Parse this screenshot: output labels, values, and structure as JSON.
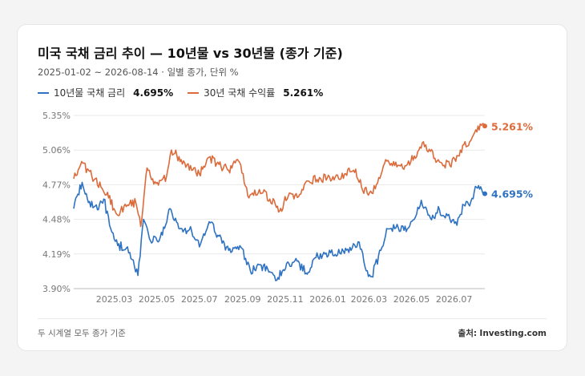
{
  "title": "미국 국채 금리 추이 — 10년물 vs 30년물 (종가 기준)",
  "subtitle": "2025-01-02 ~ 2026-08-14 · 일별 종가, 단위 %",
  "legend": [
    {
      "label": "10년물 국채 금리",
      "value": "4.695%"
    },
    {
      "label": "30년 국채 수익률",
      "value": "5.261%"
    }
  ],
  "end_labels": {
    "ten": "4.695%",
    "thirty": "5.261%"
  },
  "footer": {
    "note": "두 시계열 모두 종가 기준",
    "source_label": "출처:",
    "source": "Investing.com"
  },
  "colors": {
    "ten": "#2e72c1",
    "thirty": "#dc6b3c",
    "grid": "#e8e8ea",
    "tick": "#777777"
  },
  "chart_data": {
    "type": "line",
    "title": "미국 국채 금리 추이 — 10년물 vs 30년물 (종가 기준)",
    "x_range": [
      "2025-01-02",
      "2026-08-14"
    ],
    "ylim": [
      3.9,
      5.35
    ],
    "y_ticks": [
      "5.35%",
      "5.06%",
      "4.77%",
      "4.48%",
      "4.19%",
      "3.90%"
    ],
    "y_tick_values": [
      5.35,
      5.06,
      4.77,
      4.48,
      4.19,
      3.9
    ],
    "x_ticks": [
      "2025.03",
      "2025.05",
      "2025.07",
      "2025.09",
      "2025.11",
      "2026.01",
      "2026.03",
      "2026.05",
      "2026.07"
    ],
    "x_tick_dates": [
      "2025-03-01",
      "2025-05-01",
      "2025-07-01",
      "2025-09-01",
      "2025-11-01",
      "2026-01-01",
      "2026-03-01",
      "2026-05-01",
      "2026-07-01"
    ],
    "grid": true,
    "legend_position": "top-left",
    "series": [
      {
        "name": "10년물 국채 금리",
        "points": [
          [
            "2025-01-02",
            4.57
          ],
          [
            "2025-01-14",
            4.79
          ],
          [
            "2025-01-23",
            4.62
          ],
          [
            "2025-02-05",
            4.56
          ],
          [
            "2025-02-14",
            4.65
          ],
          [
            "2025-02-24",
            4.4
          ],
          [
            "2025-03-06",
            4.26
          ],
          [
            "2025-03-20",
            4.25
          ],
          [
            "2025-04-04",
            4.01
          ],
          [
            "2025-04-12",
            4.48
          ],
          [
            "2025-04-22",
            4.3
          ],
          [
            "2025-05-06",
            4.33
          ],
          [
            "2025-05-20",
            4.57
          ],
          [
            "2025-06-03",
            4.4
          ],
          [
            "2025-06-20",
            4.38
          ],
          [
            "2025-07-01",
            4.25
          ],
          [
            "2025-07-15",
            4.46
          ],
          [
            "2025-07-29",
            4.34
          ],
          [
            "2025-08-12",
            4.22
          ],
          [
            "2025-08-28",
            4.26
          ],
          [
            "2025-09-12",
            4.05
          ],
          [
            "2025-09-26",
            4.1
          ],
          [
            "2025-10-10",
            4.04
          ],
          [
            "2025-10-20",
            3.97
          ],
          [
            "2025-11-03",
            4.11
          ],
          [
            "2025-11-18",
            4.13
          ],
          [
            "2025-12-01",
            4.03
          ],
          [
            "2025-12-15",
            4.16
          ],
          [
            "2026-01-05",
            4.2
          ],
          [
            "2026-01-20",
            4.19
          ],
          [
            "2026-02-05",
            4.24
          ],
          [
            "2026-02-15",
            4.29
          ],
          [
            "2026-02-25",
            4.05
          ],
          [
            "2026-03-05",
            4.0
          ],
          [
            "2026-03-18",
            4.22
          ],
          [
            "2026-03-28",
            4.4
          ],
          [
            "2026-04-12",
            4.41
          ],
          [
            "2026-04-25",
            4.4
          ],
          [
            "2026-05-05",
            4.48
          ],
          [
            "2026-05-15",
            4.64
          ],
          [
            "2026-05-28",
            4.49
          ],
          [
            "2026-06-10",
            4.56
          ],
          [
            "2026-06-25",
            4.48
          ],
          [
            "2026-07-05",
            4.43
          ],
          [
            "2026-07-15",
            4.6
          ],
          [
            "2026-07-25",
            4.63
          ],
          [
            "2026-08-02",
            4.75
          ],
          [
            "2026-08-14",
            4.695
          ]
        ]
      },
      {
        "name": "30년 국채 수익률",
        "points": [
          [
            "2025-01-02",
            4.82
          ],
          [
            "2025-01-15",
            4.95
          ],
          [
            "2025-01-28",
            4.84
          ],
          [
            "2025-02-10",
            4.75
          ],
          [
            "2025-02-21",
            4.66
          ],
          [
            "2025-03-05",
            4.52
          ],
          [
            "2025-03-20",
            4.6
          ],
          [
            "2025-04-01",
            4.62
          ],
          [
            "2025-04-08",
            4.42
          ],
          [
            "2025-04-17",
            4.91
          ],
          [
            "2025-04-30",
            4.78
          ],
          [
            "2025-05-15",
            4.84
          ],
          [
            "2025-05-22",
            5.06
          ],
          [
            "2025-06-05",
            4.98
          ],
          [
            "2025-06-20",
            4.89
          ],
          [
            "2025-07-01",
            4.86
          ],
          [
            "2025-07-15",
            5.0
          ],
          [
            "2025-07-29",
            4.94
          ],
          [
            "2025-08-12",
            4.89
          ],
          [
            "2025-08-26",
            4.97
          ],
          [
            "2025-09-10",
            4.66
          ],
          [
            "2025-09-25",
            4.73
          ],
          [
            "2025-10-10",
            4.65
          ],
          [
            "2025-10-24",
            4.55
          ],
          [
            "2025-11-07",
            4.7
          ],
          [
            "2025-11-20",
            4.67
          ],
          [
            "2025-12-05",
            4.8
          ],
          [
            "2025-12-20",
            4.83
          ],
          [
            "2026-01-10",
            4.81
          ],
          [
            "2026-01-25",
            4.86
          ],
          [
            "2026-02-10",
            4.9
          ],
          [
            "2026-02-20",
            4.72
          ],
          [
            "2026-03-05",
            4.7
          ],
          [
            "2026-03-15",
            4.83
          ],
          [
            "2026-03-25",
            4.98
          ],
          [
            "2026-04-10",
            4.92
          ],
          [
            "2026-04-25",
            4.94
          ],
          [
            "2026-05-05",
            5.01
          ],
          [
            "2026-05-18",
            5.13
          ],
          [
            "2026-05-28",
            5.05
          ],
          [
            "2026-06-10",
            4.96
          ],
          [
            "2026-06-25",
            4.93
          ],
          [
            "2026-07-10",
            5.06
          ],
          [
            "2026-07-25",
            5.14
          ],
          [
            "2026-08-01",
            5.23
          ],
          [
            "2026-08-14",
            5.261
          ]
        ]
      }
    ]
  }
}
